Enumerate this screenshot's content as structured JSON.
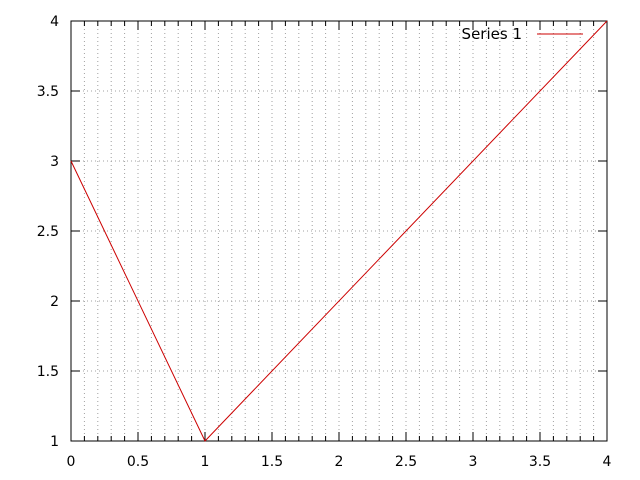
{
  "chart_data": {
    "type": "line",
    "title": "",
    "xlabel": "",
    "ylabel": "",
    "xlim": [
      0,
      4
    ],
    "ylim": [
      1,
      4
    ],
    "x_ticks": [
      0,
      0.5,
      1,
      1.5,
      2,
      2.5,
      3,
      3.5,
      4
    ],
    "y_ticks": [
      1,
      1.5,
      2,
      2.5,
      3,
      3.5,
      4
    ],
    "x_tick_labels": [
      "0",
      "0.5",
      "1",
      "1.5",
      "2",
      "2.5",
      "3",
      "3.5",
      "4"
    ],
    "y_tick_labels": [
      "1",
      "1.5",
      "2",
      "2.5",
      "3",
      "3.5",
      "4"
    ],
    "x_minor_step": 0.1,
    "grid": true,
    "legend_position": "top-right",
    "series": [
      {
        "name": "Series 1",
        "color": "#cc0000",
        "x": [
          0,
          1,
          4
        ],
        "y": [
          3,
          1,
          4
        ]
      }
    ]
  }
}
